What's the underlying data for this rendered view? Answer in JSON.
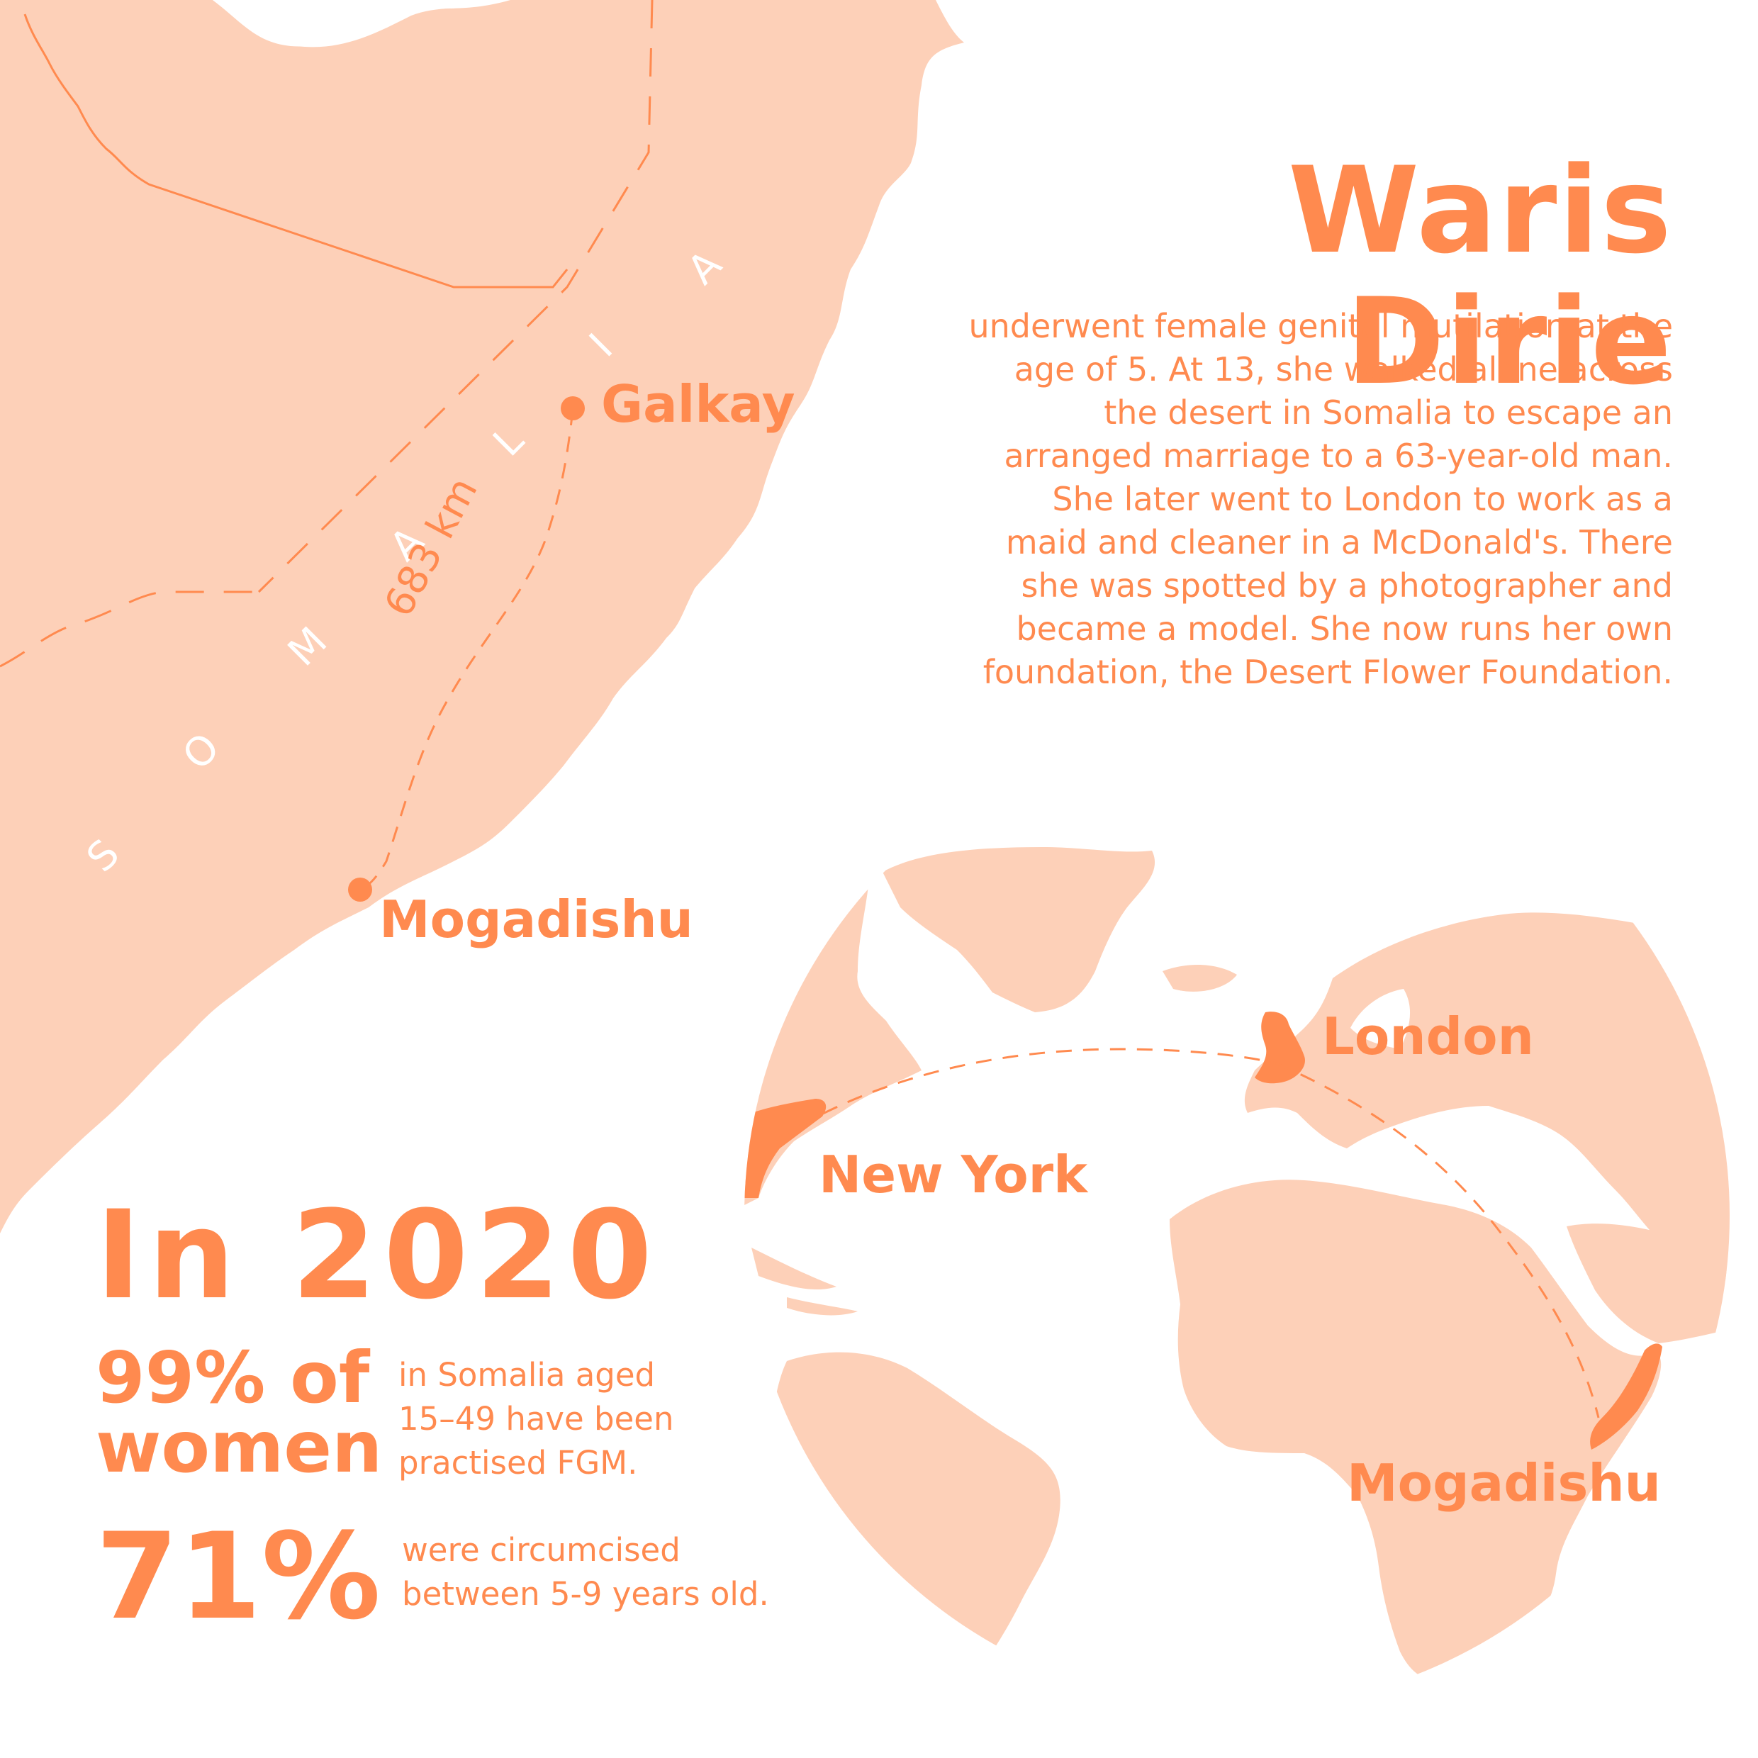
{
  "heading": {
    "name": "Waris Dirie",
    "bio": "underwent female genital mutilation at the age of 5. At 13, she walked alone across the desert in Somalia to escape an arranged marriage to a 63-year-old man. She later went to London to work as a maid and cleaner in a McDonald's. There she was spotted by a photographer and became a model. She now runs her own foundation, the Desert Flower Foundation."
  },
  "somalia_map": {
    "country_label": [
      "S",
      "O",
      "M",
      "A",
      "L",
      "I",
      "A"
    ],
    "origin_city": "Galkay",
    "destination_city": "Mogadishu",
    "distance": "683 km"
  },
  "globe": {
    "cities": {
      "london": "London",
      "new_york": "New York",
      "mogadishu": "Mogadishu"
    }
  },
  "stats": {
    "year": "In 2020",
    "stat1_value_line1": "99% of",
    "stat1_value_line2": "women",
    "stat1_desc_line1": "in Somalia aged",
    "stat1_desc_line2": "15–49 have been",
    "stat1_desc_line3": "practised FGM.",
    "stat2_value": "71%",
    "stat2_desc_line1": "were circumcised",
    "stat2_desc_line2": "between 5-9 years old."
  },
  "colors": {
    "accent": "#ff8a4f",
    "land": "#fdd0b8",
    "highlight_land": "#ff8a4f",
    "background": "#ffffff"
  }
}
